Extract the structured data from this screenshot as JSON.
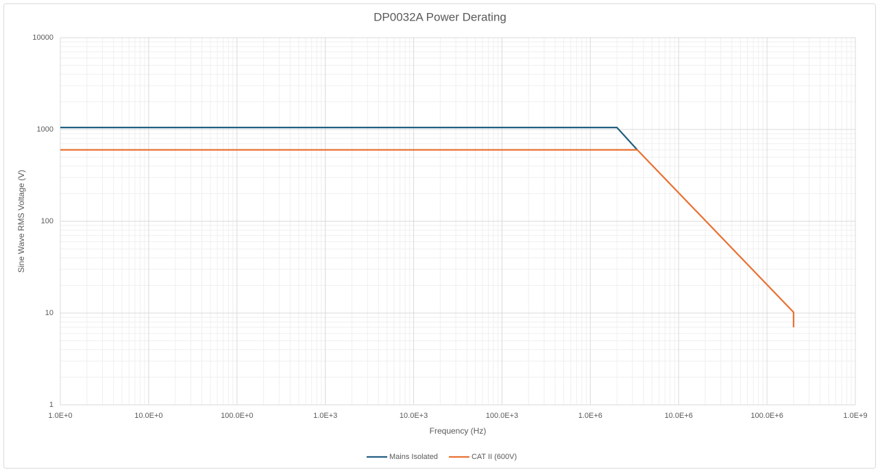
{
  "chart_data": {
    "type": "line",
    "title": "DP0032A Power Derating",
    "x_label": "Frequency (Hz)",
    "y_label": "Sine Wave RMS Voltage (V)",
    "xscale": "log",
    "yscale": "log",
    "grid": true,
    "minor_grid": true,
    "legend": "bottom",
    "xlim": [
      1,
      1000000000
    ],
    "ylim": [
      1,
      10000
    ],
    "xticks": [
      {
        "value": 1,
        "label": "1.0E+0"
      },
      {
        "value": 10,
        "label": "10.0E+0"
      },
      {
        "value": 100,
        "label": "100.0E+0"
      },
      {
        "value": 1000,
        "label": "1.0E+3"
      },
      {
        "value": 10000,
        "label": "10.0E+3"
      },
      {
        "value": 100000,
        "label": "100.0E+3"
      },
      {
        "value": 1000000,
        "label": "1.0E+6"
      },
      {
        "value": 10000000,
        "label": "10.0E+6"
      },
      {
        "value": 100000000,
        "label": "100.0E+6"
      },
      {
        "value": 1000000000,
        "label": "1.0E+9"
      }
    ],
    "yticks": [
      1,
      10,
      100,
      1000,
      10000
    ],
    "series": [
      {
        "name": "Mains Isolated",
        "color": "#215f80",
        "x": [
          1,
          2000000,
          3400000
        ],
        "values": [
          1050,
          1050,
          600
        ]
      },
      {
        "name": "CAT II (600V)",
        "color": "#e97132",
        "x": [
          1,
          3400000,
          200000000,
          200000000
        ],
        "values": [
          600,
          600,
          10.2,
          7
        ]
      }
    ]
  }
}
